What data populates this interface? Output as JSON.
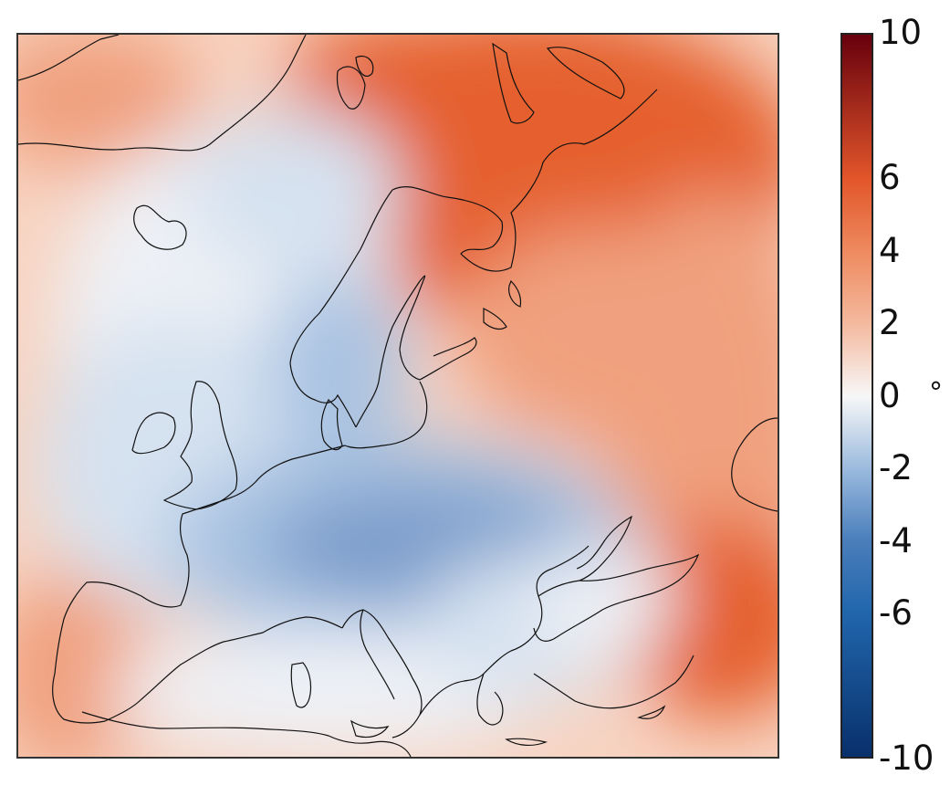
{
  "colorbar": {
    "ticks": [
      "10",
      "6",
      "4",
      "2",
      "0",
      "-2",
      "-4",
      "-6",
      "-10"
    ],
    "tick_values": [
      10,
      6,
      4,
      2,
      0,
      -2,
      -4,
      -6,
      -10
    ],
    "min": -10,
    "max": 10,
    "unit": "°",
    "colors": {
      "minus10": "#08306b",
      "minus6": "#2166ac",
      "minus4": "#4a7ebb",
      "minus2": "#9cbbde",
      "zero": "#f7f7f7",
      "plus2": "#f4b99e",
      "plus4": "#ee8a5f",
      "plus6": "#e2562a",
      "plus10": "#67000d"
    }
  },
  "map": {
    "region": "Europe",
    "colors": {
      "warm_strong": "#e5612f",
      "warm": "#f0a07e",
      "warm_light": "#f8d3c0",
      "neutral": "#eef1f6",
      "cool_light": "#d6e2f0",
      "cool": "#a9c3e2",
      "cool_strong": "#7e9fcc",
      "coast": "#111111"
    }
  }
}
